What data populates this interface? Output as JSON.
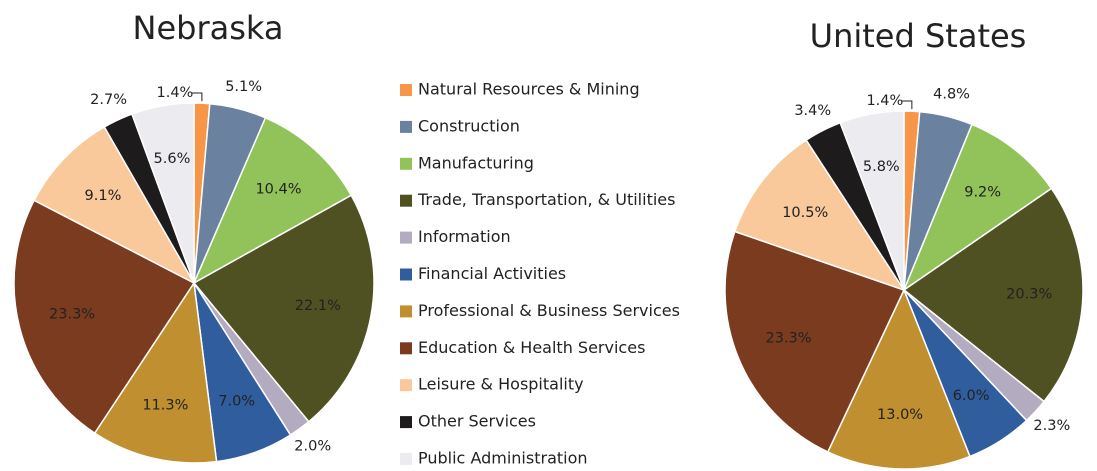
{
  "legend": {
    "categories": [
      "Natural Resources & Mining",
      "Construction",
      "Manufacturing",
      "Trade, Transportation, & Utilities",
      "Information",
      "Financial Activities",
      "Professional & Business Services",
      "Education & Health Services",
      "Leisure & Hospitality",
      "Other Services",
      "Public Administration"
    ],
    "colors": [
      "#f79646",
      "#6a829f",
      "#92c35a",
      "#4f5123",
      "#b3acc0",
      "#2f5d9e",
      "#c08f2f",
      "#7a3b1f",
      "#f9c89b",
      "#1e1b1c",
      "#ececf0"
    ]
  },
  "chart_data": [
    {
      "type": "pie",
      "title": "Nebraska",
      "values": [
        1.4,
        5.1,
        10.4,
        22.1,
        2.0,
        7.0,
        11.3,
        23.3,
        9.1,
        2.7,
        5.6
      ],
      "value_labels": [
        "1.4%",
        "5.1%",
        "10.4%",
        "22.1%",
        "2.0%",
        "7.0%",
        "11.3%",
        "23.3%",
        "9.1%",
        "2.7%",
        "5.6%"
      ]
    },
    {
      "type": "pie",
      "title": "United States",
      "values": [
        1.4,
        4.8,
        9.2,
        20.3,
        2.3,
        6.0,
        13.0,
        23.3,
        10.5,
        3.4,
        5.8
      ],
      "value_labels": [
        "1.4%",
        "4.8%",
        "9.2%",
        "20.3%",
        "2.3%",
        "6.0%",
        "13.0%",
        "23.3%",
        "10.5%",
        "3.4%",
        "5.8%"
      ]
    }
  ]
}
